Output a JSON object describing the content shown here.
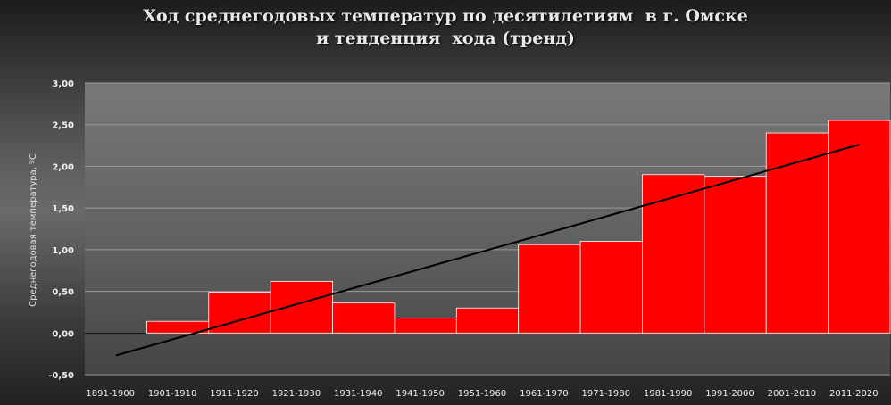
{
  "chart_data": {
    "type": "bar",
    "title_lines": [
      "Ход среднегодовых температур по десятилетиям  в г. Омске",
      "и тенденция  хода (тренд)"
    ],
    "ylabel": "Среднегодовая температура, ºС",
    "xlabel": "",
    "categories": [
      "1891-1900",
      "1901-1910",
      "1911-1920",
      "1921-1930",
      "1931-1940",
      "1941-1950",
      "1951-1960",
      "1961-1970",
      "1971-1980",
      "1981-1990",
      "1991-2000",
      "2001-2010",
      "2011-2020"
    ],
    "values": [
      0.0,
      0.14,
      0.49,
      0.62,
      0.36,
      0.18,
      0.3,
      1.06,
      1.1,
      1.9,
      1.88,
      2.4,
      2.55
    ],
    "ylim": [
      -0.5,
      3.0
    ],
    "yticks": [
      3.0,
      2.5,
      2.0,
      1.5,
      1.0,
      0.5,
      0.0,
      -0.5
    ],
    "ytick_labels": [
      "3,00",
      "2,50",
      "2,00",
      "1,50",
      "1,00",
      "0,50",
      "0,00",
      "-0,50"
    ],
    "trend": {
      "start": -0.27,
      "end": 2.26
    },
    "grid": true,
    "colors": {
      "bar": "#ff0000",
      "bar_edge": "#ffffff",
      "trend": "#000000",
      "plot_top": "#6e6e6e",
      "plot_bottom": "#474747",
      "grid": "#9a9a9a",
      "text": "#f0f0f0"
    }
  }
}
